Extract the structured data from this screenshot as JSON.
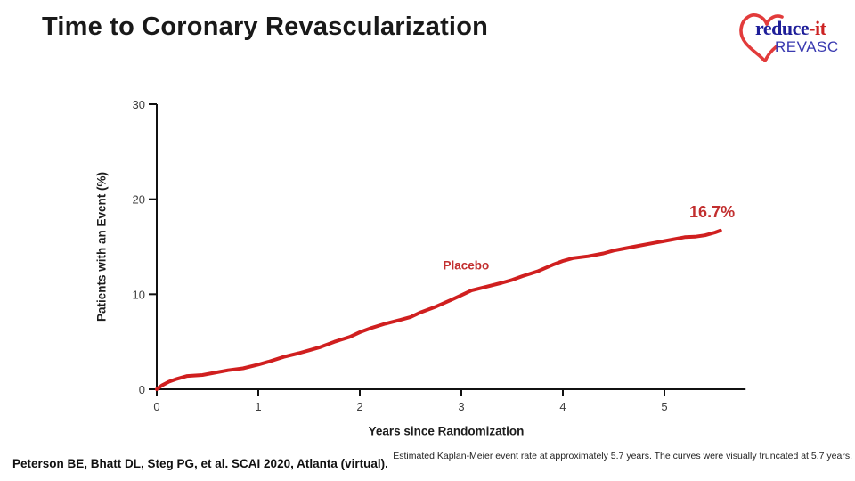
{
  "slide": {
    "title": "Time to Coronary Revascularization",
    "citation": "Peterson BE, Bhatt DL, Steg PG, et al. SCAI 2020, Atlanta (virtual).",
    "footnote": "Estimated Kaplan-Meier event rate at approximately 5.7 years. The curves were visually truncated at 5.7 years."
  },
  "logo": {
    "line1_main": "reduce",
    "line1_suffix": "-it",
    "line2": "REVASC",
    "heart_color": "#e23b3b",
    "blue_dark": "#1e1e99",
    "blue_light": "#3939b0",
    "red": "#cc2222"
  },
  "chart_data": {
    "type": "line",
    "title": "",
    "xlabel": "Years since Randomization",
    "ylabel": "Patients with an Event (%)",
    "xlim": [
      0,
      5.8
    ],
    "ylim": [
      0,
      30
    ],
    "x_ticks": [
      0,
      1,
      2,
      3,
      4,
      5
    ],
    "y_ticks": [
      0,
      10,
      20,
      30
    ],
    "grid": false,
    "axis_color": "#111111",
    "tick_label_color": "#3d3d3d",
    "series": [
      {
        "name": "Placebo",
        "color": "#d01f1f",
        "x": [
          0,
          0.05,
          0.12,
          0.2,
          0.3,
          0.45,
          0.55,
          0.7,
          0.85,
          1.0,
          1.1,
          1.25,
          1.4,
          1.5,
          1.6,
          1.75,
          1.9,
          2.0,
          2.1,
          2.25,
          2.4,
          2.5,
          2.6,
          2.75,
          2.9,
          3.0,
          3.1,
          3.25,
          3.4,
          3.5,
          3.6,
          3.75,
          3.9,
          4.0,
          4.1,
          4.25,
          4.4,
          4.5,
          4.6,
          4.75,
          4.9,
          5.0,
          5.1,
          5.2,
          5.3,
          5.4,
          5.5,
          5.55
        ],
        "y": [
          0,
          0.4,
          0.8,
          1.1,
          1.4,
          1.5,
          1.7,
          2.0,
          2.2,
          2.6,
          2.9,
          3.4,
          3.8,
          4.1,
          4.4,
          5.0,
          5.5,
          6.0,
          6.4,
          6.9,
          7.3,
          7.6,
          8.1,
          8.7,
          9.4,
          9.9,
          10.4,
          10.8,
          11.2,
          11.5,
          11.9,
          12.4,
          13.1,
          13.5,
          13.8,
          14.0,
          14.3,
          14.6,
          14.8,
          15.1,
          15.4,
          15.6,
          15.8,
          16.0,
          16.05,
          16.2,
          16.5,
          16.7
        ]
      }
    ],
    "annotations": [
      {
        "kind": "series-label",
        "text": "Placebo",
        "x": 2.82,
        "y": 12.6,
        "anchor": "start",
        "color": "#c22f2f"
      },
      {
        "kind": "value-label",
        "text": "16.7%",
        "x": 5.47,
        "y": 18.1,
        "anchor": "middle",
        "color": "#c22f2f"
      }
    ],
    "final_event_rate_pct": 16.7,
    "truncation_years": 5.7
  }
}
